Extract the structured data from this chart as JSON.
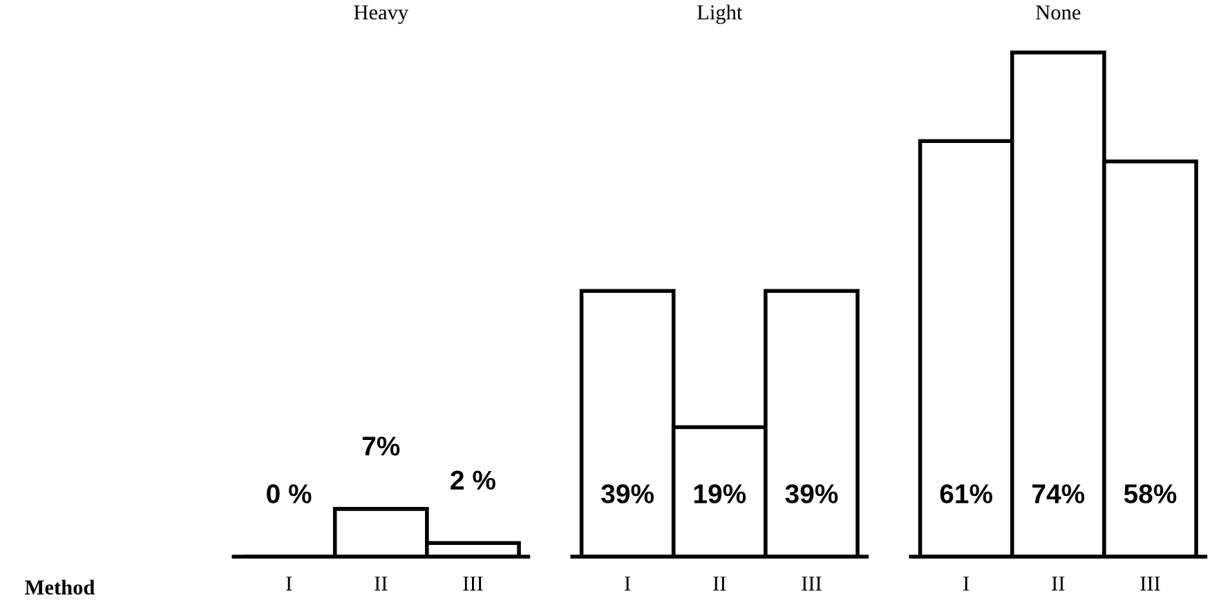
{
  "chart_data": [
    {
      "type": "bar",
      "title": "Heavy",
      "categories": [
        "I",
        "II",
        "III"
      ],
      "values": [
        0,
        7,
        2
      ],
      "color": "#ffffff",
      "value_labels": [
        "0 %",
        "7%",
        "2 %"
      ],
      "annotations": [
        "Method"
      ]
    },
    {
      "type": "bar",
      "title": "Light",
      "categories": [
        "I",
        "II",
        "III"
      ],
      "values": [
        39,
        19,
        39
      ],
      "color": "#ffffff",
      "value_labels": [
        "39%",
        "19%",
        "39%"
      ]
    },
    {
      "type": "bar",
      "title": "None",
      "categories": [
        "I",
        "II",
        "III"
      ],
      "values": [
        61,
        74,
        58
      ],
      "color": "#ffffff",
      "value_labels": [
        "61%",
        "74%",
        "58%"
      ]
    }
  ]
}
